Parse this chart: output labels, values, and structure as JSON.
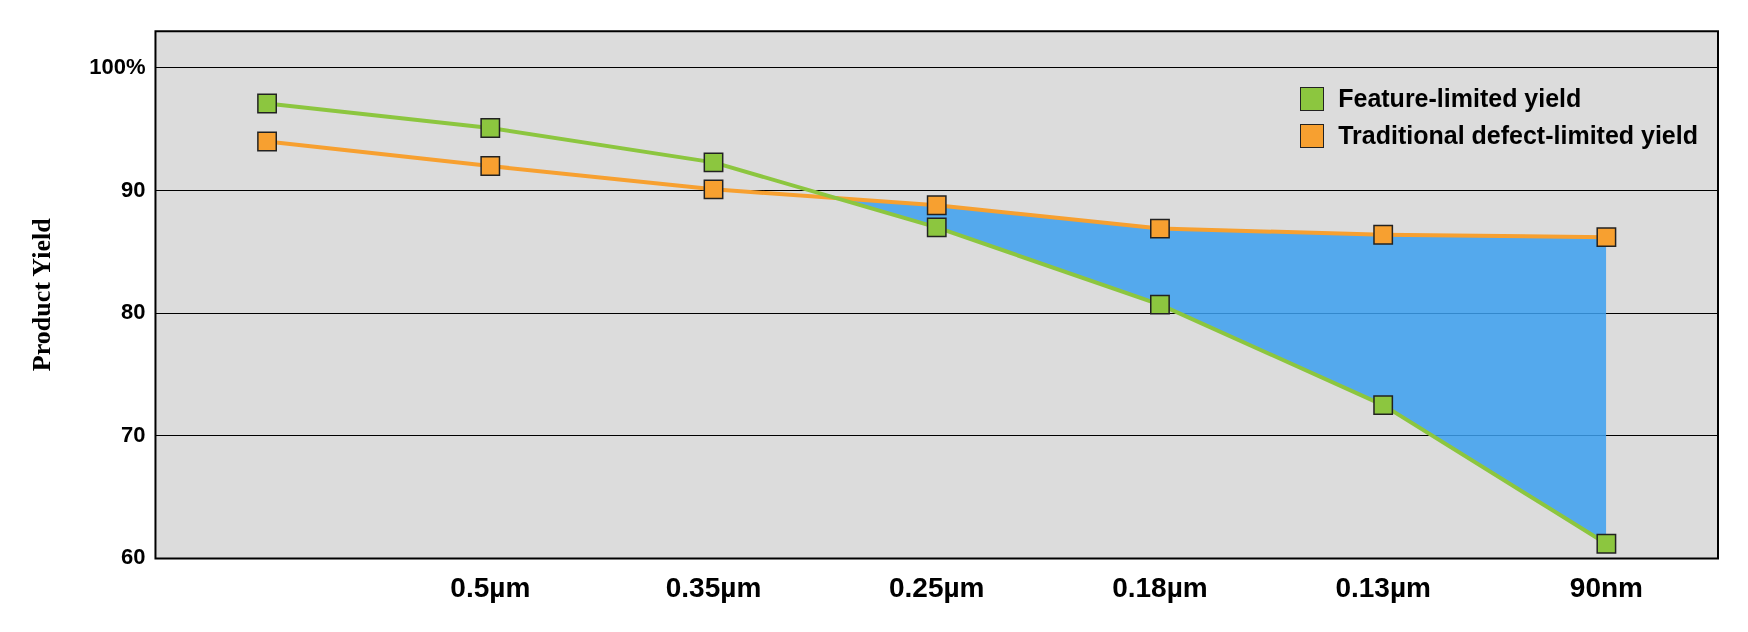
{
  "chart_data": {
    "type": "line",
    "ylabel": "Product Yield",
    "categories": [
      null,
      "0.5µm",
      "0.35µm",
      "0.25µm",
      "0.18µm",
      "0.13µm",
      "90nm"
    ],
    "series": [
      {
        "name": "Feature-limited yield",
        "color": "#8cc63f",
        "values": [
          97.1,
          95.1,
          92.3,
          87.0,
          80.7,
          72.5,
          61.2
        ]
      },
      {
        "name": "Traditional defect-limited yield",
        "color": "#f7a030",
        "values": [
          94.0,
          92.0,
          90.1,
          88.8,
          86.9,
          86.4,
          86.2
        ]
      }
    ],
    "ylim": [
      60,
      103
    ],
    "yticks": [
      60,
      70,
      80,
      90,
      {
        "value": 100,
        "label": "100%"
      }
    ],
    "grid": "y",
    "legend": "top right",
    "marker": "square",
    "line_style": "solid"
  }
}
